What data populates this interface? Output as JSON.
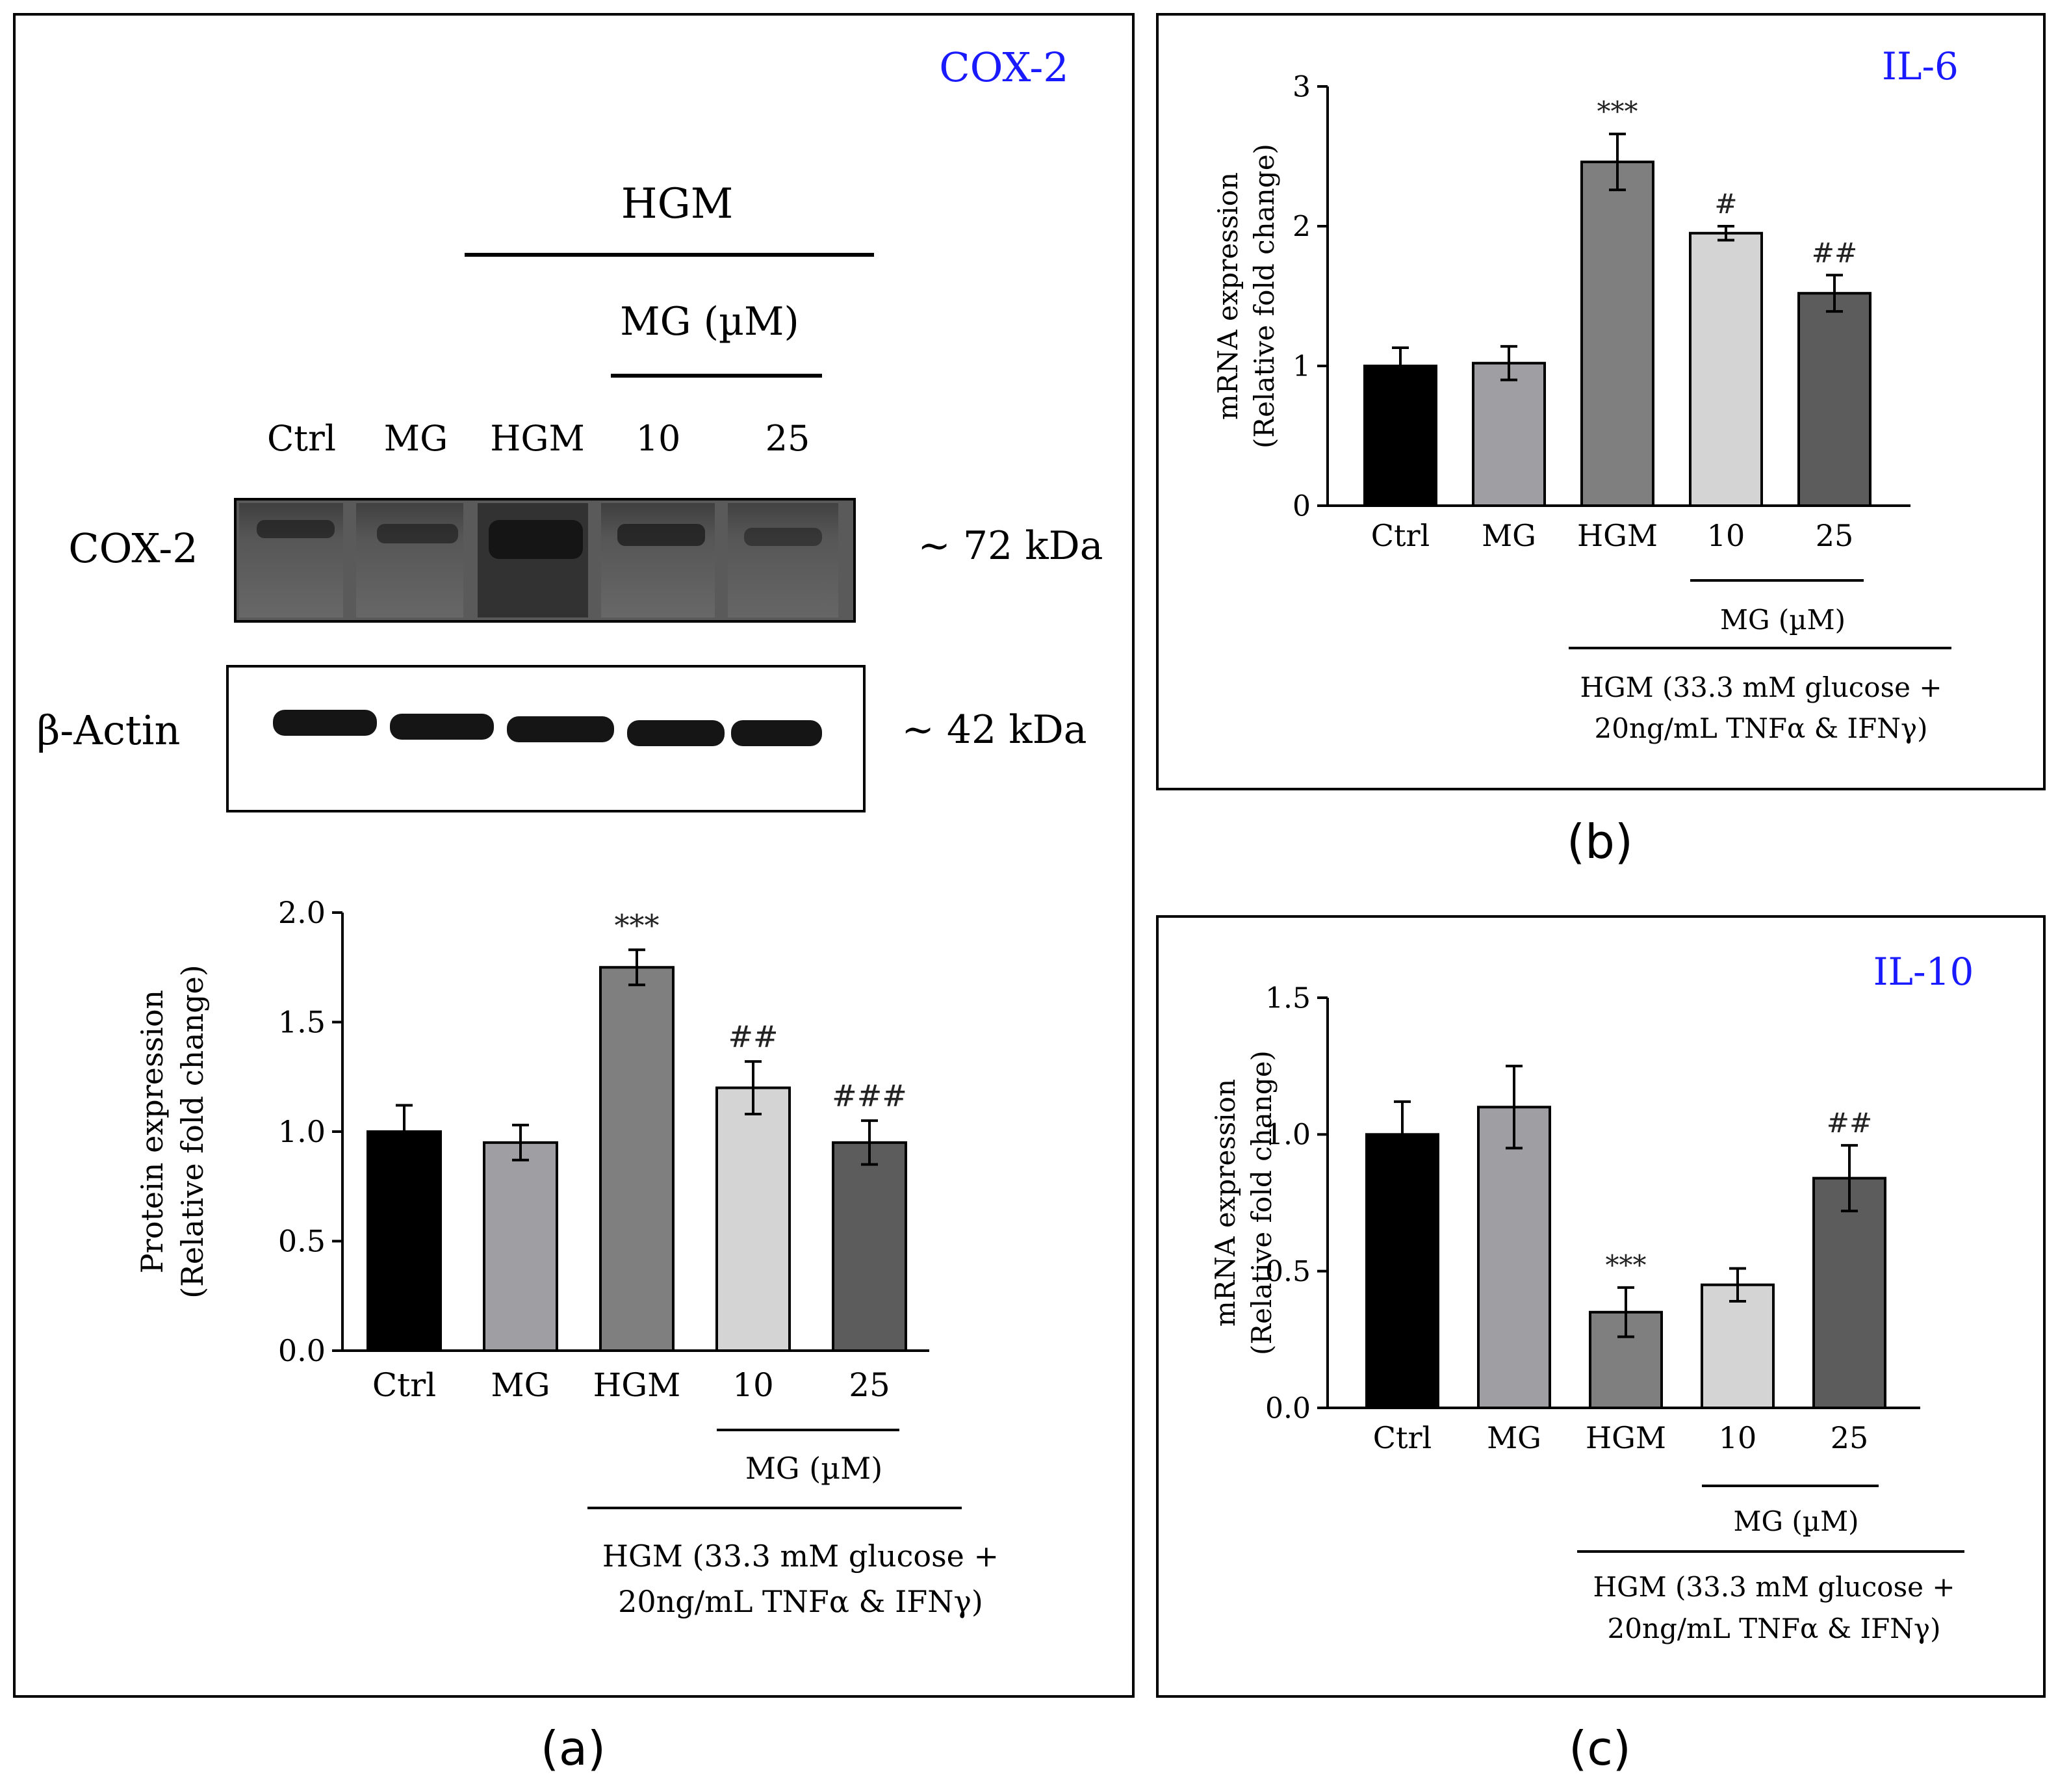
{
  "panel_labels": {
    "a": "(a)",
    "b": "(b)",
    "c": "(c)"
  },
  "blot": {
    "title": "COX-2",
    "title_color": "#1a1aff",
    "header_hgm": "HGM",
    "header_mg": "MG (µM)",
    "lanes": [
      "Ctrl",
      "MG",
      "HGM",
      "10",
      "25"
    ],
    "rows": [
      {
        "name": "COX-2",
        "size": "~ 72 kDa"
      },
      {
        "name": "β-Actin",
        "size": "~ 42 kDa"
      }
    ]
  },
  "chart_data": [
    {
      "id": "cox2",
      "type": "bar",
      "title": "",
      "ylabel_line1": "Protein expression",
      "ylabel_line2": "(Relative fold change)",
      "categories": [
        "Ctrl",
        "MG",
        "HGM",
        "10",
        "25"
      ],
      "values": [
        1.0,
        0.95,
        1.75,
        1.2,
        0.95
      ],
      "errors": [
        0.12,
        0.08,
        0.08,
        0.12,
        0.1
      ],
      "significance": [
        "",
        "",
        "***",
        "##",
        "###"
      ],
      "colors": [
        "#000000",
        "#9e9ea3",
        "#7f7f7f",
        "#d4d4d4",
        "#5c5c5c"
      ],
      "ylim": [
        0,
        2.0
      ],
      "yticks": [
        0.0,
        0.5,
        1.0,
        1.5,
        2.0
      ],
      "ytick_labels": [
        "0.0",
        "0.5",
        "1.0",
        "1.5",
        "2.0"
      ],
      "group_label_mg": "MG (µM)",
      "group_label_hgm_line1": "HGM (33.3 mM glucose +",
      "group_label_hgm_line2": "20ng/mL TNFα & IFNγ)"
    },
    {
      "id": "il6",
      "type": "bar",
      "title": "IL-6",
      "title_color": "#1a1aff",
      "ylabel_line1": "mRNA expression",
      "ylabel_line2": "(Relative fold change)",
      "categories": [
        "Ctrl",
        "MG",
        "HGM",
        "10",
        "25"
      ],
      "values": [
        1.0,
        1.02,
        2.46,
        1.95,
        1.52
      ],
      "errors": [
        0.13,
        0.12,
        0.2,
        0.05,
        0.13
      ],
      "significance": [
        "",
        "",
        "***",
        "#",
        "##"
      ],
      "colors": [
        "#000000",
        "#9e9ea3",
        "#7f7f7f",
        "#d4d4d4",
        "#5c5c5c"
      ],
      "ylim": [
        0,
        3
      ],
      "yticks": [
        0,
        1,
        2,
        3
      ],
      "ytick_labels": [
        "0",
        "1",
        "2",
        "3"
      ],
      "group_label_mg": "MG (µM)",
      "group_label_hgm_line1": "HGM (33.3 mM glucose +",
      "group_label_hgm_line2": "20ng/mL TNFα & IFNγ)"
    },
    {
      "id": "il10",
      "type": "bar",
      "title": "IL-10",
      "title_color": "#1a1aff",
      "ylabel_line1": "mRNA expression",
      "ylabel_line2": "(Relative fold change)",
      "categories": [
        "Ctrl",
        "MG",
        "HGM",
        "10",
        "25"
      ],
      "values": [
        1.0,
        1.1,
        0.35,
        0.45,
        0.84
      ],
      "errors": [
        0.12,
        0.15,
        0.09,
        0.06,
        0.12
      ],
      "significance": [
        "",
        "",
        "***",
        "",
        "##"
      ],
      "colors": [
        "#000000",
        "#9e9ea3",
        "#7f7f7f",
        "#d4d4d4",
        "#5c5c5c"
      ],
      "ylim": [
        0,
        1.5
      ],
      "yticks": [
        0.0,
        0.5,
        1.0,
        1.5
      ],
      "ytick_labels": [
        "0.0",
        "0.5",
        "1.0",
        "1.5"
      ],
      "group_label_mg": "MG (µM)",
      "group_label_hgm_line1": "HGM (33.3 mM glucose +",
      "group_label_hgm_line2": "20ng/mL TNFα & IFNγ)"
    }
  ]
}
